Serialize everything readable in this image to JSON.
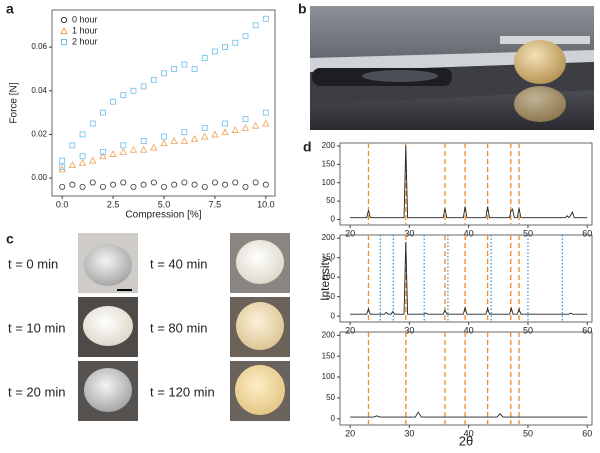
{
  "panel_labels": [
    "a",
    "b",
    "c",
    "d"
  ],
  "time_labels": [
    "t = 0 min",
    "t = 10 min",
    "t = 20 min",
    "t = 40 min",
    "t = 80 min",
    "t = 120 min"
  ],
  "chart_data": [
    {
      "type": "scatter",
      "xlabel": "Compression [%]",
      "ylabel": "Force [N]",
      "xlim": [
        -0.5,
        10.45
      ],
      "ylim": [
        -0.0082,
        0.077
      ],
      "xticks": [
        {
          "value": 0,
          "label": "0.0"
        },
        {
          "value": 2.5,
          "label": "2.5"
        },
        {
          "value": 5,
          "label": "5.0"
        },
        {
          "value": 7.5,
          "label": "7.5"
        },
        {
          "value": 10,
          "label": "10.0"
        }
      ],
      "yticks": [
        {
          "value": 0,
          "label": "0.00"
        },
        {
          "value": 0.02,
          "label": "0.02"
        },
        {
          "value": 0.04,
          "label": "0.04"
        },
        {
          "value": 0.06,
          "label": "0.06"
        }
      ],
      "series": [
        {
          "name": "0 hour",
          "color": "#333333",
          "marker": "circle",
          "x": [
            0,
            0.5,
            1,
            1.5,
            2,
            2.5,
            3,
            3.5,
            4,
            4.5,
            5,
            5.5,
            6,
            6.5,
            7,
            7.5,
            8,
            8.5,
            9,
            9.5,
            10
          ],
          "values": [
            -0.004,
            -0.003,
            -0.004,
            -0.002,
            -0.004,
            -0.003,
            -0.002,
            -0.004,
            -0.003,
            -0.002,
            -0.004,
            -0.003,
            -0.002,
            -0.003,
            -0.004,
            -0.002,
            -0.003,
            -0.002,
            -0.004,
            -0.002,
            -0.003
          ]
        },
        {
          "name": "1 hour",
          "color": "#f0a050",
          "marker": "triangle",
          "x": [
            0,
            0.5,
            1,
            1.5,
            2,
            2.5,
            3,
            3.5,
            4,
            4.5,
            5,
            5.5,
            6,
            6.5,
            7,
            7.5,
            8,
            8.5,
            9,
            9.5,
            10
          ],
          "values": [
            0.004,
            0.006,
            0.007,
            0.008,
            0.01,
            0.011,
            0.012,
            0.013,
            0.013,
            0.014,
            0.016,
            0.017,
            0.017,
            0.018,
            0.019,
            0.02,
            0.021,
            0.022,
            0.023,
            0.024,
            0.025
          ]
        },
        {
          "name": "2 hour",
          "color": "#6bbde8",
          "marker": "square",
          "x": [
            0,
            0.5,
            1,
            1.5,
            2,
            2.5,
            3,
            3.5,
            4,
            4.5,
            5,
            5.5,
            6,
            6.5,
            7,
            7.5,
            8,
            8.5,
            9,
            9.5,
            10,
            0,
            1,
            2,
            3,
            4,
            5,
            6,
            7,
            8,
            9,
            10
          ],
          "values": [
            0.008,
            0.015,
            0.02,
            0.025,
            0.03,
            0.035,
            0.038,
            0.04,
            0.042,
            0.045,
            0.048,
            0.05,
            0.052,
            0.05,
            0.055,
            0.058,
            0.06,
            0.062,
            0.065,
            0.07,
            0.073,
            0.005,
            0.01,
            0.012,
            0.015,
            0.017,
            0.019,
            0.021,
            0.023,
            0.025,
            0.027,
            0.03
          ]
        }
      ]
    },
    {
      "type": "line",
      "xlim": [
        18.3,
        60.8
      ],
      "ylim": [
        -15,
        208
      ],
      "xticks": [
        20,
        30,
        40,
        50,
        60
      ],
      "yticks": [
        0,
        50,
        100,
        150,
        200
      ],
      "series": [
        {
          "color": "#222222",
          "x": [
            20,
            22.8,
            23.1,
            23.4,
            29.1,
            29.4,
            29.7,
            35.7,
            36.0,
            36.3,
            39.1,
            39.4,
            39.7,
            42.9,
            43.2,
            43.5,
            46.9,
            47.1,
            47.4,
            47.7,
            48.2,
            48.5,
            48.8,
            56.3,
            56.6,
            56.9,
            57.2,
            57.5,
            57.8,
            60
          ],
          "values": [
            5,
            5,
            25,
            5,
            5,
            200,
            5,
            5,
            30,
            5,
            5,
            35,
            5,
            5,
            35,
            5,
            5,
            22,
            28,
            5,
            5,
            30,
            5,
            5,
            10,
            5,
            12,
            20,
            5,
            5
          ]
        }
      ],
      "reference_lines": [
        {
          "color": "#f08a24",
          "style": "dashed",
          "x": [
            23.1,
            29.4,
            36.0,
            39.4,
            43.2,
            47.1,
            48.5
          ]
        }
      ]
    },
    {
      "type": "line",
      "ylabel": "Intensity",
      "xlim": [
        18.3,
        60.8
      ],
      "ylim": [
        -15,
        208
      ],
      "xticks": [
        20,
        30,
        40,
        50,
        60
      ],
      "yticks": [
        0,
        50,
        100,
        150,
        200
      ],
      "series": [
        {
          "color": "#222222",
          "x": [
            20,
            22.8,
            23.1,
            23.4,
            25.8,
            26.1,
            26.4,
            26.9,
            27.2,
            27.5,
            29.1,
            29.4,
            29.7,
            32.5,
            32.8,
            33.1,
            35.7,
            36.0,
            36.3,
            39.1,
            39.4,
            39.7,
            42.9,
            43.2,
            43.5,
            46.9,
            47.2,
            47.5,
            48.2,
            48.5,
            48.8,
            56.9,
            57.2,
            57.5,
            60
          ],
          "values": [
            5,
            5,
            18,
            5,
            5,
            10,
            5,
            5,
            12,
            5,
            5,
            190,
            5,
            5,
            8,
            5,
            5,
            15,
            5,
            5,
            22,
            5,
            5,
            20,
            5,
            5,
            20,
            5,
            5,
            18,
            5,
            5,
            8,
            5,
            5
          ]
        }
      ],
      "reference_lines": [
        {
          "color": "#f08a24",
          "style": "dashed",
          "x": [
            23.1,
            29.4,
            36.0,
            39.4,
            43.2,
            47.1,
            48.5
          ]
        },
        {
          "color": "#3a9ad9",
          "style": "dotted",
          "x": [
            25.1,
            27.3,
            32.5,
            36.5,
            43.8,
            50.0,
            55.8
          ]
        }
      ]
    },
    {
      "type": "line",
      "xlabel": "2θ",
      "xlim": [
        18.3,
        60.8
      ],
      "ylim": [
        -15,
        208
      ],
      "xticks": [
        20,
        30,
        40,
        50,
        60
      ],
      "yticks": [
        0,
        50,
        100,
        150,
        200
      ],
      "series": [
        {
          "color": "#222222",
          "x": [
            20,
            24,
            24.5,
            25,
            31,
            31.5,
            32,
            44.8,
            45.3,
            45.8,
            60
          ],
          "values": [
            4,
            4,
            7,
            4,
            4,
            16,
            4,
            4,
            12,
            4,
            4
          ]
        }
      ],
      "reference_lines": [
        {
          "color": "#f08a24",
          "style": "dashed",
          "x": [
            23.1,
            29.4,
            36.0,
            39.4,
            43.2,
            47.1,
            48.5
          ]
        }
      ]
    }
  ]
}
